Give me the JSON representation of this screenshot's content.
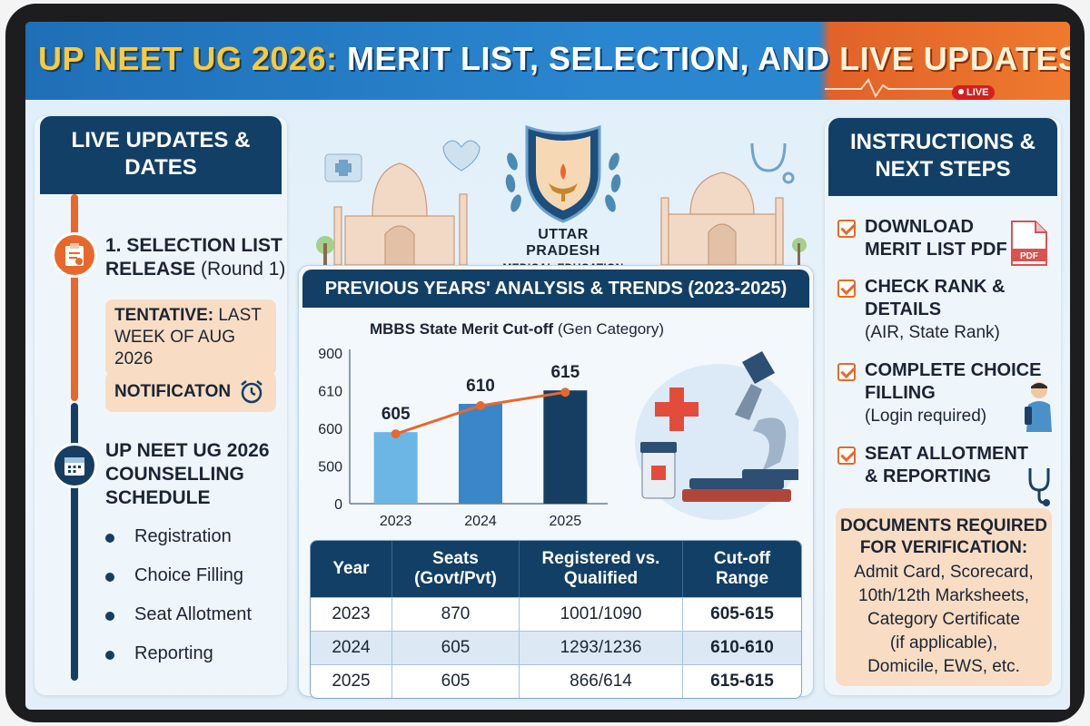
{
  "banner": {
    "title_part1": "UP NEET UG 2026:",
    "title_part2": "MERIT LIST, SELECTION, AND",
    "title_part3": "LIVE UPDATES",
    "live_badge": "LIVE"
  },
  "left": {
    "heading_line1": "LIVE UPDATES &",
    "heading_line2": "DATES",
    "selection_title_line1": "1. SELECTION LIST",
    "selection_title_line2": "RELEASE",
    "selection_round": "(Round 1)",
    "tentative_label": "TENTATIVE:",
    "tentative_rest": "LAST",
    "tentative_line2": "WEEK OF AUG 2026",
    "notification": "NOTIFICATON",
    "counselling_line1": "UP NEET UG 2026",
    "counselling_line2": "COUNSELLING",
    "counselling_line3": "SCHEDULE",
    "steps": [
      "Registration",
      "Choice Filling",
      "Seat Allotment",
      "Reporting"
    ]
  },
  "emblem": {
    "line1": "UTTAR PRADESH",
    "line2": "MEDICAL EDUCATION"
  },
  "center": {
    "heading": "PREVIOUS YEARS' ANALYSIS & TRENDS (2023-2025)",
    "chart_title_bold": "MBBS State Merit Cut-off",
    "chart_title_rest": "(Gen Category)"
  },
  "chart_data": {
    "type": "bar",
    "title": "MBBS State Merit Cut-off (Gen Category)",
    "categories": [
      "2023",
      "2024",
      "2025"
    ],
    "values": [
      605,
      610,
      615
    ],
    "y_tick_labels": [
      "0",
      "500",
      "600",
      "610",
      "900"
    ],
    "bar_colors": [
      "#6cb6e6",
      "#3b86c8",
      "#163e62"
    ],
    "trend_line_color": "#e8682c",
    "grid": false,
    "overlay": "line"
  },
  "table": {
    "headers": [
      [
        "Year"
      ],
      [
        "Seats",
        "(Govt/Pvt)"
      ],
      [
        "Registered vs.",
        "Qualified"
      ],
      [
        "Cut-off",
        "Range"
      ]
    ],
    "rows": [
      [
        "2023",
        "870",
        "1001/1090",
        "605-615"
      ],
      [
        "2024",
        "605",
        "1293/1236",
        "610-610"
      ],
      [
        "2025",
        "605",
        "866/614",
        "615-615"
      ]
    ]
  },
  "right": {
    "heading_line1": "INSTRUCTIONS &",
    "heading_line2": "NEXT STEPS",
    "items": [
      {
        "line1": "DOWNLOAD",
        "line2": "MERIT LIST PDF",
        "sub": ""
      },
      {
        "line1": "CHECK RANK &",
        "line2": "DETAILS",
        "sub": "(AIR, State Rank)"
      },
      {
        "line1": "COMPLETE CHOICE",
        "line2": "FILLING",
        "sub": "(Login required)"
      },
      {
        "line1": "SEAT ALLOTMENT",
        "line2": "& REPORTING",
        "sub": ""
      }
    ],
    "pdf_label": "PDF",
    "docs_title_line1": "DOCUMENTS REQUIRED",
    "docs_title_line2": "FOR VERIFICATION:",
    "docs_lines": [
      "Admit Card, Scorecard,",
      "10th/12th Marksheets,",
      "Category Certificate",
      "(if applicable),",
      "Domicile, EWS, etc."
    ]
  },
  "colors": {
    "navy": "#123f66",
    "orange": "#e8682c",
    "peach": "#f8ddc4",
    "light_blue": "#6cb6e6"
  }
}
